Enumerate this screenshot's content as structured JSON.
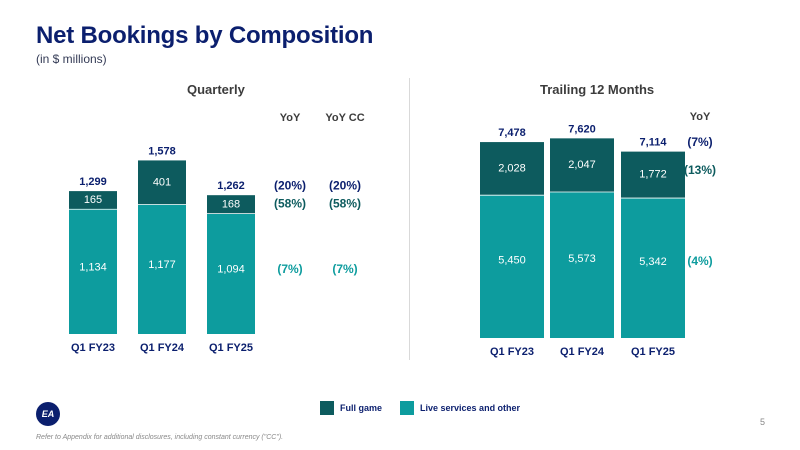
{
  "page": {
    "title": "Net Bookings by Composition",
    "subtitle": "(in $ millions)",
    "footnote": "Refer to Appendix for additional disclosures, including constant currency (\"CC\").",
    "page_number": "5",
    "logo_text": "EA"
  },
  "colors": {
    "full_game": "#0d5b5e",
    "live_services": "#0d9c9e",
    "text_dark": "#0b1f6e",
    "yoy_green": "#0d9c9e"
  },
  "legend": [
    {
      "label": "Full game",
      "color": "#0d5b5e"
    },
    {
      "label": "Live services and other",
      "color": "#0d9c9e"
    }
  ],
  "chart_data": [
    {
      "type": "bar",
      "stacked": true,
      "title": "Quarterly",
      "categories": [
        "Q1 FY23",
        "Q1 FY24",
        "Q1 FY25"
      ],
      "series": [
        {
          "name": "Live services and other",
          "values": [
            1134,
            1177,
            1094
          ],
          "labels": [
            "1,134",
            "1,177",
            "1,094"
          ]
        },
        {
          "name": "Full game",
          "values": [
            165,
            401,
            168
          ],
          "labels": [
            "165",
            "401",
            "168"
          ]
        }
      ],
      "totals": [
        "1,299",
        "1,578",
        "1,262"
      ],
      "yoy_headers": [
        "YoY",
        "YoY CC"
      ],
      "yoy": [
        {
          "row": "total",
          "values": [
            "(20%)",
            "(20%)"
          ]
        },
        {
          "row": "Full game",
          "values": [
            "(58%)",
            "(58%)"
          ]
        },
        {
          "row": "Live services and other",
          "values": [
            "(7%)",
            "(7%)"
          ]
        }
      ]
    },
    {
      "type": "bar",
      "stacked": true,
      "title": "Trailing 12 Months",
      "categories": [
        "Q1 FY23",
        "Q1 FY24",
        "Q1 FY25"
      ],
      "series": [
        {
          "name": "Live services and other",
          "values": [
            5450,
            5573,
            5342
          ],
          "labels": [
            "5,450",
            "5,573",
            "5,342"
          ]
        },
        {
          "name": "Full game",
          "values": [
            2028,
            2047,
            1772
          ],
          "labels": [
            "2,028",
            "2,047",
            "1,772"
          ]
        }
      ],
      "totals": [
        "7,478",
        "7,620",
        "7,114"
      ],
      "yoy_headers": [
        "YoY"
      ],
      "yoy": [
        {
          "row": "total",
          "values": [
            "(7%)"
          ]
        },
        {
          "row": "Full game",
          "values": [
            "(13%)"
          ]
        },
        {
          "row": "Live services and other",
          "values": [
            "(4%)"
          ]
        }
      ]
    }
  ]
}
